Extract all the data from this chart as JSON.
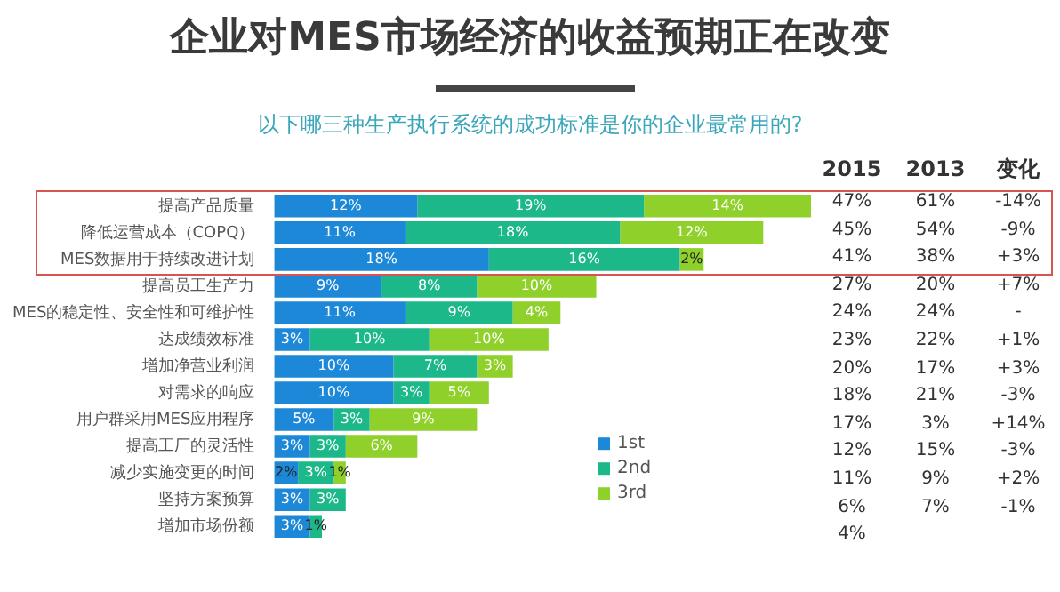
{
  "chart_data": [
    {
      "type": "bar",
      "orientation": "horizontal",
      "stacked": true,
      "title": "企业对MES市场经济的收益预期正在改变",
      "subtitle": "以下哪三种生产执行系统的成功标准是你的企业最常用的?",
      "categories": [
        "提高产品质量",
        "降低运营成本（COPQ）",
        "MES数据用于持续改进计划",
        "提高员工生产力",
        "MES的稳定性、安全性和可维护性",
        "达成绩效标准",
        "增加净营业利润",
        "对需求的响应",
        "用户群采用MES应用程序",
        "提高工厂的灵活性",
        "减少实施变更的时间",
        "坚持方案预算",
        "增加市场份额"
      ],
      "series": [
        {
          "name": "1st",
          "color": "#1e88d8",
          "values": [
            12,
            11,
            18,
            9,
            11,
            3,
            10,
            10,
            5,
            3,
            2,
            3,
            3
          ],
          "value_labels": [
            "12%",
            "11%",
            "18%",
            "9%",
            "11%",
            "3%",
            "10%",
            "10%",
            "5%",
            "3%",
            "2%",
            "3%",
            "3%"
          ]
        },
        {
          "name": "2nd",
          "color": "#1cb88a",
          "values": [
            19,
            18,
            16,
            8,
            9,
            10,
            7,
            3,
            3,
            3,
            3,
            3,
            1
          ],
          "value_labels": [
            "19%",
            "18%",
            "16%",
            "8%",
            "9%",
            "10%",
            "7%",
            "3%",
            "3%",
            "3%",
            "3%",
            "3%",
            "1%"
          ]
        },
        {
          "name": "3rd",
          "color": "#8fd12a",
          "values": [
            14,
            12,
            2,
            10,
            4,
            10,
            3,
            5,
            9,
            6,
            1,
            null,
            null
          ],
          "value_labels": [
            "14%",
            "12%",
            "2%",
            "10%",
            "4%",
            "10%",
            "3%",
            "5%",
            "9%",
            "6%",
            "1%",
            null,
            null
          ]
        }
      ],
      "legend": "bottom right",
      "tick_labels": "y",
      "grid": false
    },
    {
      "type": "other",
      "annotations": [
        "2015",
        "2013",
        "变化",
        "47%",
        "61%",
        "-14%",
        "45%",
        "54%",
        "-9%",
        "41%",
        "38%",
        "+3%",
        "27%",
        "20%",
        "+7%",
        "24%",
        "24%",
        "-",
        "23%",
        "22%",
        "+1%",
        "20%",
        "17%",
        "+3%",
        "18%",
        "21%",
        "-3%",
        "17%",
        "3%",
        "+14%",
        "12%",
        "15%",
        "-3%",
        "11%",
        "9%",
        "+2%",
        "6%",
        "7%",
        "-1%",
        "4%"
      ]
    }
  ]
}
